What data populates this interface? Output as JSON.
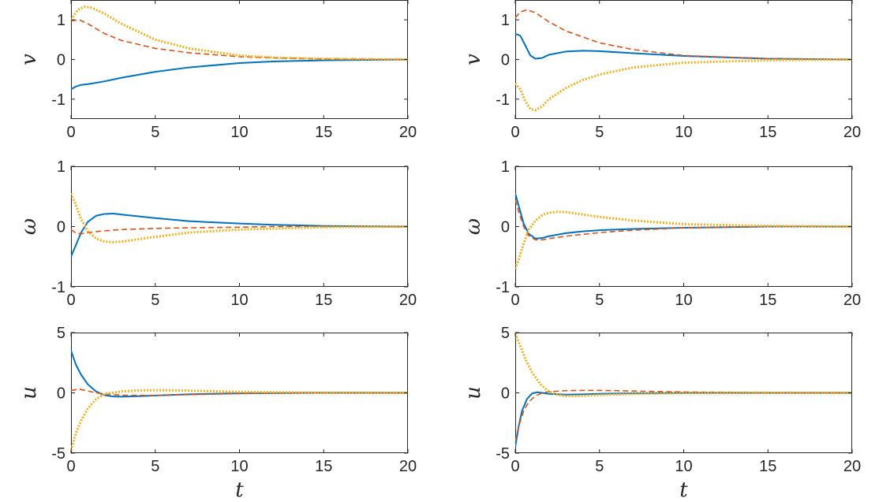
{
  "chart_data": [
    {
      "type": "line",
      "panel": "v-left",
      "ylabel": "v",
      "xlabel": "",
      "xlim": [
        0,
        20
      ],
      "ylim": [
        -1.5,
        1.5
      ],
      "xticks": [
        "0",
        "5",
        "10",
        "15",
        "20"
      ],
      "yticks": [
        "-1",
        "0",
        "1"
      ],
      "ytick_values": [
        -1,
        0,
        1
      ],
      "series": [
        {
          "color": "#0072BD",
          "style": "solid",
          "x": [
            0,
            0.3,
            0.6,
            1,
            2,
            3,
            5,
            7,
            10,
            12,
            15,
            20
          ],
          "y": [
            -0.75,
            -0.68,
            -0.64,
            -0.62,
            -0.55,
            -0.46,
            -0.31,
            -0.2,
            -0.09,
            -0.05,
            -0.02,
            0
          ]
        },
        {
          "color": "#D95319",
          "style": "dashed",
          "x": [
            0,
            0.5,
            1,
            2,
            3,
            5,
            7,
            10,
            12,
            15,
            20
          ],
          "y": [
            0.98,
            1.0,
            0.9,
            0.65,
            0.48,
            0.28,
            0.17,
            0.07,
            0.04,
            0.01,
            0
          ]
        },
        {
          "color": "#EDB120",
          "style": "dotted",
          "x": [
            0,
            0.4,
            0.8,
            1.2,
            2,
            3,
            5,
            7,
            10,
            12,
            15,
            20
          ],
          "y": [
            1.0,
            1.25,
            1.33,
            1.31,
            1.15,
            0.9,
            0.5,
            0.28,
            0.1,
            0.05,
            0.02,
            0
          ]
        }
      ]
    },
    {
      "type": "line",
      "panel": "v-right",
      "ylabel": "v",
      "xlabel": "",
      "xlim": [
        0,
        20
      ],
      "ylim": [
        -1.5,
        1.5
      ],
      "xticks": [
        "0",
        "5",
        "10",
        "15",
        "20"
      ],
      "yticks": [
        "-1",
        "0",
        "1"
      ],
      "ytick_values": [
        -1,
        0,
        1
      ],
      "series": [
        {
          "color": "#0072BD",
          "style": "solid",
          "x": [
            0,
            0.3,
            0.6,
            0.9,
            1.2,
            1.6,
            2,
            3,
            4,
            5,
            7,
            10,
            15,
            20
          ],
          "y": [
            0.65,
            0.6,
            0.35,
            0.1,
            0.02,
            0.04,
            0.12,
            0.2,
            0.22,
            0.21,
            0.16,
            0.09,
            0.02,
            0
          ]
        },
        {
          "color": "#D95319",
          "style": "dashed",
          "x": [
            0,
            0.3,
            0.7,
            1.2,
            2,
            3,
            5,
            7,
            10,
            15,
            20
          ],
          "y": [
            1.05,
            1.2,
            1.25,
            1.18,
            0.95,
            0.72,
            0.42,
            0.25,
            0.1,
            0.02,
            0
          ]
        },
        {
          "color": "#EDB120",
          "style": "dotted",
          "x": [
            0,
            0.3,
            0.6,
            0.9,
            1.2,
            1.6,
            2,
            3,
            4,
            5,
            7,
            10,
            15,
            20
          ],
          "y": [
            -0.6,
            -0.75,
            -1.05,
            -1.25,
            -1.28,
            -1.18,
            -1.0,
            -0.72,
            -0.52,
            -0.38,
            -0.2,
            -0.08,
            -0.02,
            0
          ]
        }
      ]
    },
    {
      "type": "line",
      "panel": "omega-left",
      "ylabel": "ω",
      "xlabel": "",
      "xlim": [
        0,
        20
      ],
      "ylim": [
        -1,
        1
      ],
      "xticks": [
        "0",
        "5",
        "10",
        "15",
        "20"
      ],
      "yticks": [
        "-1",
        "0",
        "1"
      ],
      "ytick_values": [
        -1,
        0,
        1
      ],
      "series": [
        {
          "color": "#0072BD",
          "style": "solid",
          "x": [
            0,
            0.3,
            0.6,
            1,
            1.5,
            2,
            2.5,
            3,
            4,
            5,
            7,
            10,
            12,
            15,
            20
          ],
          "y": [
            -0.5,
            -0.3,
            -0.1,
            0.08,
            0.18,
            0.21,
            0.215,
            0.2,
            0.17,
            0.14,
            0.09,
            0.05,
            0.03,
            0.01,
            0
          ]
        },
        {
          "color": "#D95319",
          "style": "dashed",
          "x": [
            0,
            0.3,
            0.6,
            1,
            2,
            3,
            5,
            7,
            10,
            12,
            15,
            20
          ],
          "y": [
            -0.05,
            -0.11,
            -0.12,
            -0.1,
            -0.07,
            -0.05,
            -0.03,
            -0.02,
            -0.01,
            0,
            0,
            0
          ]
        },
        {
          "color": "#EDB120",
          "style": "dotted",
          "x": [
            0,
            0.3,
            0.6,
            1,
            1.5,
            2,
            2.5,
            3,
            4,
            5,
            7,
            10,
            15,
            20
          ],
          "y": [
            0.55,
            0.35,
            0.12,
            -0.08,
            -0.2,
            -0.25,
            -0.26,
            -0.25,
            -0.21,
            -0.17,
            -0.1,
            -0.05,
            -0.01,
            0
          ]
        }
      ]
    },
    {
      "type": "line",
      "panel": "omega-right",
      "ylabel": "ω",
      "xlabel": "",
      "xlim": [
        0,
        20
      ],
      "ylim": [
        -1,
        1
      ],
      "xticks": [
        "0",
        "5",
        "10",
        "15",
        "20"
      ],
      "yticks": [
        "-1",
        "0",
        "1"
      ],
      "ytick_values": [
        -1,
        0,
        1
      ],
      "series": [
        {
          "color": "#0072BD",
          "style": "solid",
          "x": [
            0,
            0.2,
            0.5,
            0.8,
            1.2,
            1.6,
            2,
            3,
            4,
            5,
            7,
            10,
            15,
            20
          ],
          "y": [
            0.55,
            0.35,
            0.05,
            -0.12,
            -0.2,
            -0.19,
            -0.16,
            -0.11,
            -0.08,
            -0.06,
            -0.04,
            -0.02,
            0,
            0
          ]
        },
        {
          "color": "#D95319",
          "style": "dashed",
          "x": [
            0,
            0.2,
            0.5,
            0.8,
            1.2,
            1.6,
            2,
            3,
            4,
            5,
            7,
            10,
            15,
            20
          ],
          "y": [
            0.45,
            0.25,
            0.0,
            -0.15,
            -0.22,
            -0.22,
            -0.2,
            -0.16,
            -0.13,
            -0.1,
            -0.06,
            -0.02,
            0,
            0
          ]
        },
        {
          "color": "#EDB120",
          "style": "dotted",
          "x": [
            0,
            0.2,
            0.5,
            0.8,
            1.2,
            1.6,
            2,
            2.5,
            3,
            4,
            5,
            7,
            10,
            15,
            20
          ],
          "y": [
            -0.7,
            -0.55,
            -0.28,
            -0.05,
            0.1,
            0.19,
            0.23,
            0.245,
            0.24,
            0.2,
            0.16,
            0.1,
            0.04,
            0.01,
            0
          ]
        }
      ]
    },
    {
      "type": "line",
      "panel": "u-left",
      "ylabel": "u",
      "xlabel": "t",
      "xlim": [
        0,
        20
      ],
      "ylim": [
        -5,
        5
      ],
      "xticks": [
        "0",
        "5",
        "10",
        "15",
        "20"
      ],
      "yticks": [
        "-5",
        "0",
        "5"
      ],
      "ytick_values": [
        -5,
        0,
        5
      ],
      "series": [
        {
          "color": "#0072BD",
          "style": "solid",
          "x": [
            0,
            0.3,
            0.6,
            1,
            1.5,
            2,
            2.5,
            3,
            4,
            5,
            7,
            10,
            15,
            20
          ],
          "y": [
            3.5,
            2.3,
            1.5,
            0.7,
            0.1,
            -0.2,
            -0.3,
            -0.32,
            -0.28,
            -0.22,
            -0.12,
            -0.04,
            0,
            0
          ]
        },
        {
          "color": "#D95319",
          "style": "dashed",
          "x": [
            0,
            0.5,
            1,
            1.5,
            2,
            3,
            5,
            7,
            10,
            15,
            20
          ],
          "y": [
            0.2,
            0.3,
            0.15,
            0.0,
            -0.1,
            -0.2,
            -0.22,
            -0.15,
            -0.06,
            -0.01,
            0
          ]
        },
        {
          "color": "#EDB120",
          "style": "dotted",
          "x": [
            0,
            0.3,
            0.6,
            1,
            1.5,
            2,
            3,
            4,
            5,
            6,
            7,
            10,
            15,
            20
          ],
          "y": [
            -4.8,
            -3.3,
            -2.3,
            -1.3,
            -0.5,
            -0.1,
            0.12,
            0.2,
            0.22,
            0.21,
            0.18,
            0.08,
            0.01,
            0
          ]
        }
      ]
    },
    {
      "type": "line",
      "panel": "u-right",
      "ylabel": "u",
      "xlabel": "t",
      "xlim": [
        0,
        20
      ],
      "ylim": [
        -5,
        5
      ],
      "xticks": [
        "0",
        "5",
        "10",
        "15",
        "20"
      ],
      "yticks": [
        "-5",
        "0",
        "5"
      ],
      "ytick_values": [
        -5,
        0,
        5
      ],
      "series": [
        {
          "color": "#0072BD",
          "style": "solid",
          "x": [
            0,
            0.2,
            0.4,
            0.7,
            1,
            1.3,
            1.6,
            2,
            3,
            4,
            5,
            7,
            10,
            20
          ],
          "y": [
            -4.5,
            -2.8,
            -1.5,
            -0.5,
            -0.05,
            0.05,
            0.0,
            -0.08,
            -0.15,
            -0.12,
            -0.08,
            -0.03,
            0,
            0
          ]
        },
        {
          "color": "#D95319",
          "style": "dashed",
          "x": [
            0,
            0.2,
            0.5,
            0.8,
            1.2,
            1.6,
            2,
            3,
            4,
            5,
            6,
            7,
            10,
            15,
            20
          ],
          "y": [
            -4.0,
            -2.8,
            -1.5,
            -0.75,
            -0.25,
            -0.02,
            0.1,
            0.18,
            0.2,
            0.2,
            0.18,
            0.15,
            0.07,
            0.01,
            0
          ]
        },
        {
          "color": "#EDB120",
          "style": "dotted",
          "x": [
            0,
            0.3,
            0.6,
            1,
            1.5,
            2,
            2.5,
            3,
            4,
            5,
            7,
            10,
            15,
            20
          ],
          "y": [
            4.9,
            3.9,
            2.8,
            1.7,
            0.7,
            0.1,
            -0.15,
            -0.28,
            -0.25,
            -0.18,
            -0.08,
            -0.02,
            0,
            0
          ]
        }
      ]
    }
  ]
}
